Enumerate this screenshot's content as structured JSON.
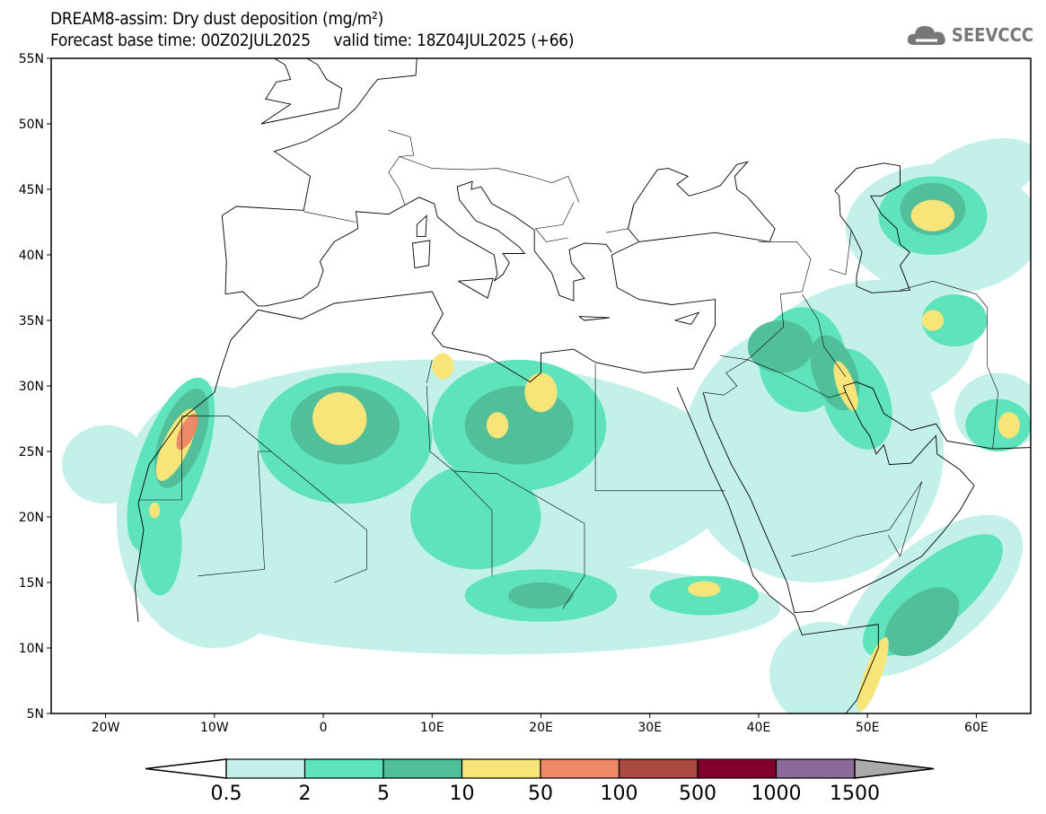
{
  "header": {
    "title": "DREAM8-assim: Dry dust deposition (mg/m²)",
    "subtitle": "Forecast base time: 00Z02JUL2025     valid time: 18Z04JUL2025 (+66)",
    "logo_text": "SEEVCCC"
  },
  "map": {
    "lon_range": [
      -25,
      65
    ],
    "lat_range": [
      5,
      55
    ],
    "lat_labels": [
      {
        "lat": 55,
        "label": "55N"
      },
      {
        "lat": 50,
        "label": "50N"
      },
      {
        "lat": 45,
        "label": "45N"
      },
      {
        "lat": 40,
        "label": "40N"
      },
      {
        "lat": 35,
        "label": "35N"
      },
      {
        "lat": 30,
        "label": "30N"
      },
      {
        "lat": 25,
        "label": "25N"
      },
      {
        "lat": 20,
        "label": "20N"
      },
      {
        "lat": 15,
        "label": "15N"
      },
      {
        "lat": 10,
        "label": "10N"
      },
      {
        "lat": 5,
        "label": "5N"
      }
    ],
    "lon_labels": [
      {
        "lon": -20,
        "label": "20W"
      },
      {
        "lon": -10,
        "label": "10W"
      },
      {
        "lon": 0,
        "label": "0"
      },
      {
        "lon": 10,
        "label": "10E"
      },
      {
        "lon": 20,
        "label": "20E"
      },
      {
        "lon": 30,
        "label": "30E"
      },
      {
        "lon": 40,
        "label": "40E"
      },
      {
        "lon": 50,
        "label": "50E"
      },
      {
        "lon": 60,
        "label": "60E"
      }
    ]
  },
  "colorbar": {
    "colors": [
      "#c3f1ea",
      "#5fe3bb",
      "#52bf9b",
      "#f7e57a",
      "#ec8a67",
      "#ab4a40",
      "#82002e",
      "#8b6a9a"
    ],
    "over_color": "#aaaaaa",
    "under_color": "#ffffff",
    "labels": [
      "0.5",
      "2",
      "5",
      "10",
      "50",
      "100",
      "500",
      "1000",
      "1500"
    ]
  }
}
